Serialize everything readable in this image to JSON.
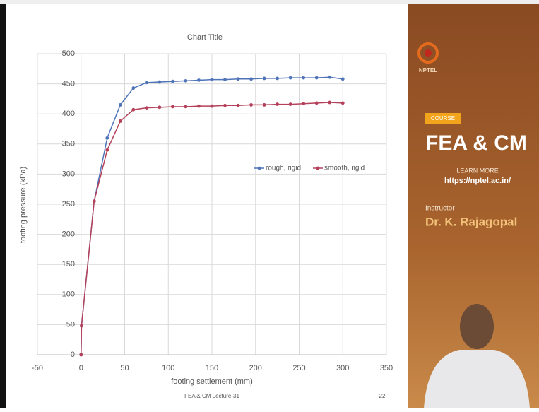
{
  "chart_data": {
    "type": "scatter-line",
    "title": "Chart Title",
    "x_label": "footing settlement (mm)",
    "y_label": "footing pressure (kPa)",
    "x": [
      0,
      0.5,
      15,
      30,
      45,
      60,
      75,
      90,
      105,
      120,
      135,
      150,
      165,
      180,
      195,
      210,
      225,
      240,
      255,
      270,
      285,
      300
    ],
    "series": [
      {
        "name": "rough, rigid",
        "color": "#4f74b8",
        "values": [
          0,
          48,
          255,
          360,
          415,
          443,
          452,
          453,
          454,
          455,
          456,
          457,
          457,
          458,
          458,
          459,
          459,
          460,
          460,
          460,
          461,
          458
        ]
      },
      {
        "name": "smooth, rigid",
        "color": "#b5405a",
        "values": [
          0,
          48,
          255,
          340,
          388,
          407,
          410,
          411,
          412,
          412,
          413,
          413,
          414,
          414,
          415,
          415,
          416,
          416,
          417,
          418,
          419,
          418
        ]
      }
    ],
    "xlim": [
      -50,
      350
    ],
    "xticks": [
      -50,
      0,
      50,
      100,
      150,
      200,
      250,
      300,
      350
    ],
    "ylim": [
      0,
      500
    ],
    "yticks": [
      0,
      50,
      100,
      150,
      200,
      250,
      300,
      350,
      400,
      450,
      500
    ],
    "grid": true,
    "legend": "right"
  },
  "sidebar": {
    "logo": "NPTEL",
    "badge": "COURSE",
    "course": "FEA & CM",
    "learn_more": "LEARN MORE",
    "url": "https://nptel.ac.in/",
    "instructor_label": "Instructor",
    "instructor": "Dr. K. Rajagopal"
  },
  "footer": {
    "lecture": "FEA & CM Lecture-31",
    "page": "22"
  }
}
